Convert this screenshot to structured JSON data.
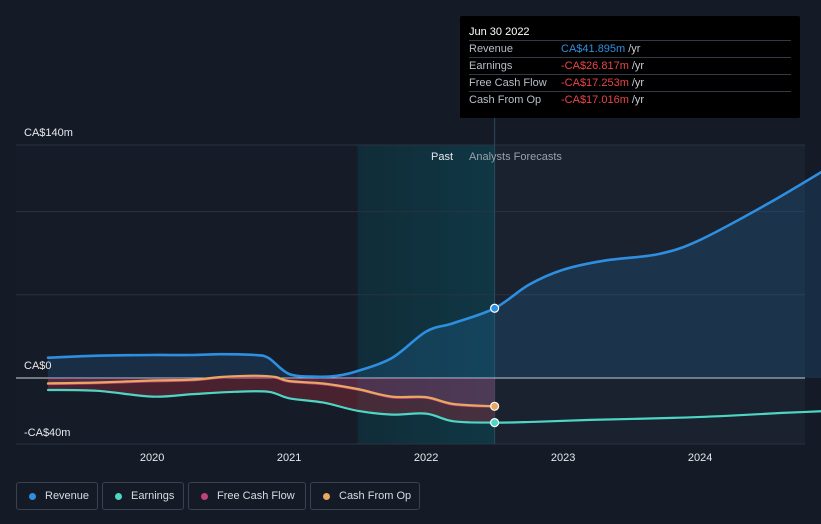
{
  "tooltip": {
    "date": "Jun 30 2022",
    "rows": [
      {
        "label": "Revenue",
        "value": "CA$41.895m",
        "unit": "/yr",
        "color": "#2e8fe0"
      },
      {
        "label": "Earnings",
        "value": "-CA$26.817m",
        "unit": "/yr",
        "color": "#e8464a"
      },
      {
        "label": "Free Cash Flow",
        "value": "-CA$17.253m",
        "unit": "/yr",
        "color": "#e8464a"
      },
      {
        "label": "Cash From Op",
        "value": "-CA$17.016m",
        "unit": "/yr",
        "color": "#e8464a"
      }
    ]
  },
  "legend": [
    {
      "label": "Revenue",
      "color": "#2e8fe0"
    },
    {
      "label": "Earnings",
      "color": "#4fd6c3"
    },
    {
      "label": "Free Cash Flow",
      "color": "#c0427a"
    },
    {
      "label": "Cash From Op",
      "color": "#e8a860"
    }
  ],
  "chart_data": {
    "type": "line",
    "title": "",
    "units": "CA$ millions",
    "y_labels": [
      "CA$140m",
      "CA$0",
      "-CA$40m"
    ],
    "ylim": [
      -40,
      140
    ],
    "xlim": [
      2019.24,
      2025.0
    ],
    "x_ticks": [
      2020,
      2021,
      2022,
      2023,
      2024
    ],
    "x_tick_labels": [
      "2020",
      "2021",
      "2022",
      "2023",
      "2024"
    ],
    "past_label": "Past",
    "forecast_label": "Analysts Forecasts",
    "forecast_start": 2022.5,
    "highlight_range": [
      2021.5,
      2022.5
    ],
    "series": [
      {
        "name": "Revenue",
        "color": "#2e8fe0",
        "points": [
          [
            2019.24,
            12.2
          ],
          [
            2019.6,
            13.4
          ],
          [
            2020.0,
            13.8
          ],
          [
            2020.3,
            13.8
          ],
          [
            2020.5,
            14.3
          ],
          [
            2020.75,
            13.8
          ],
          [
            2020.85,
            12.0
          ],
          [
            2021.0,
            2.4
          ],
          [
            2021.2,
            0.8
          ],
          [
            2021.35,
            1.3
          ],
          [
            2021.5,
            4.2
          ],
          [
            2021.75,
            12.0
          ],
          [
            2022.0,
            27.9
          ],
          [
            2022.2,
            33.0
          ],
          [
            2022.5,
            41.9
          ],
          [
            2022.75,
            56.0
          ],
          [
            2023.0,
            65.0
          ],
          [
            2023.3,
            70.5
          ],
          [
            2023.7,
            74.5
          ],
          [
            2024.0,
            83.0
          ],
          [
            2024.5,
            105.0
          ],
          [
            2025.0,
            129.5
          ]
        ]
      },
      {
        "name": "Earnings",
        "color": "#4fd6c3",
        "points": [
          [
            2019.24,
            -7.2
          ],
          [
            2019.6,
            -7.7
          ],
          [
            2020.0,
            -11.2
          ],
          [
            2020.3,
            -9.7
          ],
          [
            2020.6,
            -8.3
          ],
          [
            2020.85,
            -8.3
          ],
          [
            2021.0,
            -12.2
          ],
          [
            2021.25,
            -14.8
          ],
          [
            2021.5,
            -19.7
          ],
          [
            2021.75,
            -22.0
          ],
          [
            2022.0,
            -21.4
          ],
          [
            2022.2,
            -26.0
          ],
          [
            2022.5,
            -26.8
          ],
          [
            2022.8,
            -26.3
          ],
          [
            2023.2,
            -25.2
          ],
          [
            2023.8,
            -24.0
          ],
          [
            2024.2,
            -22.7
          ],
          [
            2024.6,
            -21.0
          ],
          [
            2025.0,
            -19.6
          ]
        ]
      },
      {
        "name": "Cash From Op",
        "color": "#e8a860",
        "points": [
          [
            2019.24,
            -3.2
          ],
          [
            2019.6,
            -2.7
          ],
          [
            2020.0,
            -1.5
          ],
          [
            2020.3,
            -1.0
          ],
          [
            2020.5,
            0.6
          ],
          [
            2020.75,
            1.4
          ],
          [
            2020.9,
            0.6
          ],
          [
            2021.0,
            -1.8
          ],
          [
            2021.25,
            -3.3
          ],
          [
            2021.5,
            -6.6
          ],
          [
            2021.75,
            -11.2
          ],
          [
            2022.0,
            -11.5
          ],
          [
            2022.2,
            -15.6
          ],
          [
            2022.5,
            -17.0
          ]
        ]
      },
      {
        "name": "Free Cash Flow",
        "color": "#c0427a",
        "points": [
          [
            2019.24,
            -3.6
          ],
          [
            2019.6,
            -3.1
          ],
          [
            2020.0,
            -2.0
          ],
          [
            2020.3,
            -1.4
          ],
          [
            2020.5,
            0.2
          ],
          [
            2020.75,
            1.0
          ],
          [
            2020.9,
            0.2
          ],
          [
            2021.0,
            -2.2
          ],
          [
            2021.25,
            -3.7
          ],
          [
            2021.5,
            -7.0
          ],
          [
            2021.75,
            -11.6
          ],
          [
            2022.0,
            -11.9
          ],
          [
            2022.2,
            -16.0
          ],
          [
            2022.5,
            -17.3
          ]
        ]
      }
    ]
  }
}
